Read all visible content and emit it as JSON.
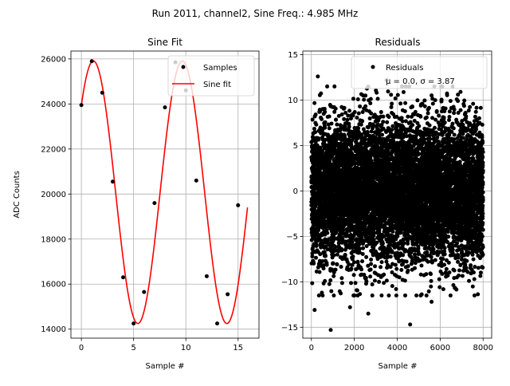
{
  "suptitle": "Run 2011, channel2, Sine Freq.: 4.985 MHz",
  "chart_data": [
    {
      "type": "line",
      "title": "Sine Fit",
      "xlabel": "Sample #",
      "ylabel": "ADC Counts",
      "xlim": [
        -1,
        17
      ],
      "ylim": [
        13600,
        26350
      ],
      "xticks": [
        0,
        5,
        10,
        15
      ],
      "yticks": [
        14000,
        16000,
        18000,
        20000,
        22000,
        24000,
        26000
      ],
      "grid": true,
      "legend": {
        "position": "top-right",
        "entries": [
          "Samples",
          "Sine fit"
        ]
      },
      "series": [
        {
          "name": "Samples",
          "style": "points",
          "color": "#000000",
          "x": [
            0,
            1,
            2,
            3,
            4,
            5,
            6,
            7,
            8,
            9,
            10,
            11,
            12,
            13,
            14,
            15
          ],
          "y": [
            23950,
            25900,
            24500,
            20550,
            16300,
            14250,
            15650,
            19600,
            23850,
            25850,
            24600,
            20600,
            16350,
            14250,
            15550,
            19500
          ]
        },
        {
          "name": "Sine fit",
          "style": "line",
          "color": "#ff0000",
          "function": {
            "offset": 20080,
            "amplitude": 5830,
            "period": 8.52,
            "phase": 0.725,
            "x_start": 0,
            "x_end": 15.9
          }
        }
      ]
    },
    {
      "type": "scatter",
      "title": "Residuals",
      "xlabel": "Sample #",
      "ylabel": "",
      "xlim": [
        -400,
        8400
      ],
      "ylim": [
        -16.2,
        15.4
      ],
      "xticks": [
        0,
        2000,
        4000,
        6000,
        8000
      ],
      "yticks": [
        -15,
        -10,
        -5,
        0,
        5,
        10,
        15
      ],
      "grid": true,
      "legend": {
        "position": "top-right",
        "entries": [
          "Residuals",
          "μ = 0.0, σ = 3.87"
        ]
      },
      "series": [
        {
          "name": "Residuals",
          "color": "#000000",
          "n_points": 8000,
          "mean": 0.0,
          "sigma": 3.87,
          "x_range": [
            0,
            8000
          ],
          "outliers": [
            {
              "x": 900,
              "y": -15.3
            },
            {
              "x": 4600,
              "y": -14.7
            },
            {
              "x": 300,
              "y": 12.6
            },
            {
              "x": 150,
              "y": -13.1
            },
            {
              "x": 2650,
              "y": -13.5
            },
            {
              "x": 5600,
              "y": -12.2
            },
            {
              "x": 3500,
              "y": 12.2
            },
            {
              "x": 7600,
              "y": -11.5
            },
            {
              "x": 6950,
              "y": 10.9
            },
            {
              "x": 1800,
              "y": -12.8
            }
          ]
        }
      ]
    }
  ]
}
